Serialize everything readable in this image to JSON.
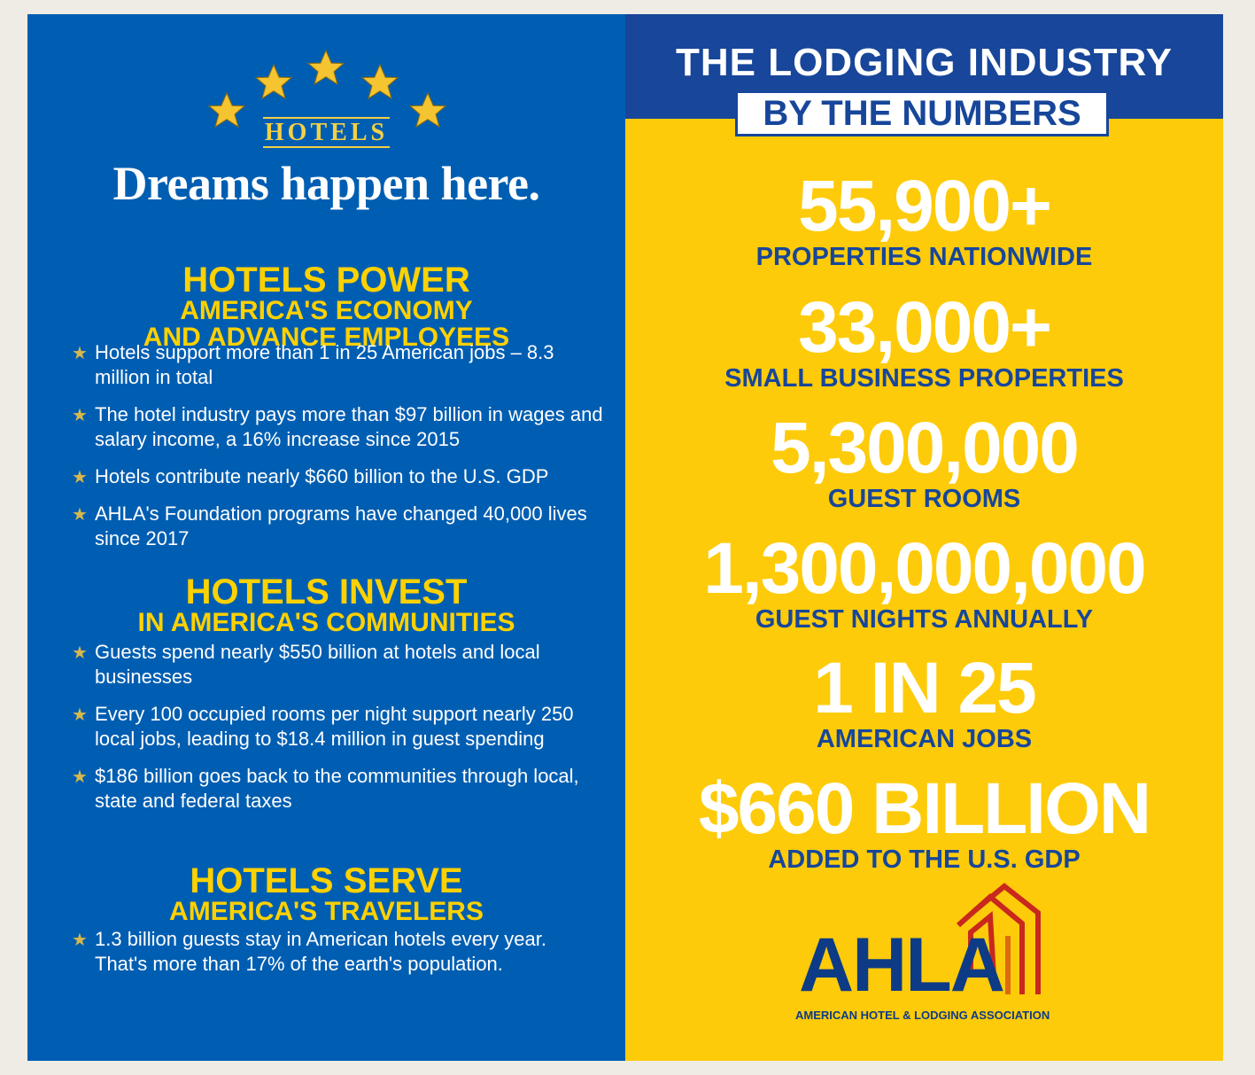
{
  "left": {
    "logo_word": "HOTELS",
    "tagline": "Dreams happen here.",
    "sections": [
      {
        "title": "HOTELS POWER",
        "subtitle_lines": [
          "AMERICA'S ECONOMY",
          "AND ADVANCE EMPLOYEES"
        ],
        "bullets": [
          "Hotels support more than 1 in 25 American jobs – 8.3 million in total",
          "The hotel industry pays more than $97 billion in wages and salary income, a 16% increase since 2015",
          "Hotels contribute nearly $660 billion to the U.S. GDP",
          "AHLA's Foundation programs have changed 40,000 lives since 2017"
        ]
      },
      {
        "title": "HOTELS INVEST",
        "subtitle_lines": [
          "IN AMERICA'S COMMUNITIES"
        ],
        "bullets": [
          "Guests spend nearly $550 billion at hotels and local businesses",
          "Every 100 occupied rooms per night support nearly 250 local jobs, leading to $18.4 million in guest spending",
          "$186 billion goes back to the communities through local, state and federal taxes"
        ]
      },
      {
        "title": "HOTELS SERVE",
        "subtitle_lines": [
          "AMERICA'S TRAVELERS"
        ],
        "bullets": [
          "1.3 billion guests stay in American hotels every year. That's more than 17% of the earth's population."
        ]
      }
    ]
  },
  "right": {
    "banner_title": "THE LODGING INDUSTRY",
    "banner_subtitle": "BY THE NUMBERS",
    "stats": [
      {
        "number": "55,900+",
        "label": "PROPERTIES NATIONWIDE"
      },
      {
        "number": "33,000+",
        "label": "SMALL BUSINESS PROPERTIES"
      },
      {
        "number": "5,300,000",
        "label": "GUEST ROOMS"
      },
      {
        "number": "1,300,000,000",
        "label": "GUEST NIGHTS ANNUALLY"
      },
      {
        "number": "1 IN 25",
        "label": "AMERICAN JOBS"
      },
      {
        "number": "$660 BILLION",
        "label": "ADDED TO THE U.S. GDP"
      }
    ],
    "logo_word": "AHLA",
    "logo_subtitle": "AMERICAN HOTEL & LODGING ASSOCIATION"
  },
  "colors": {
    "left_bg": "#005eb2",
    "right_bg": "#fecb0a",
    "heading_yellow": "#fed100",
    "navy": "#17469a",
    "logo_red": "#c8281e"
  }
}
